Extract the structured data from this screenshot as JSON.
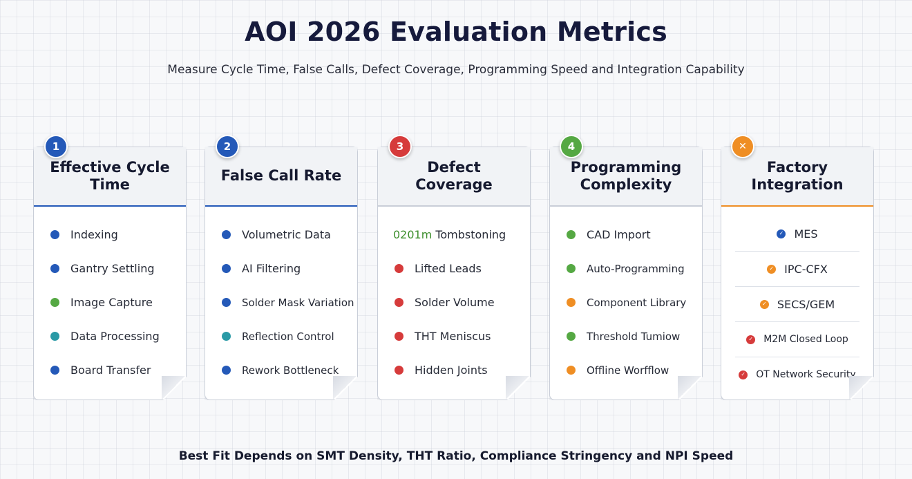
{
  "title": "AOI 2026 Evaluation Metrics",
  "subtitle": "Measure Cycle Time, False Calls, Defect Coverage, Programming Speed and Integration Capability",
  "footer": "Best Fit Depends on SMT Density, THT Ratio, Compliance Stringency and NPI Speed",
  "colors": {
    "blue": "#2459b8",
    "green": "#55a843",
    "red": "#d63b3b",
    "orange": "#ef8e24",
    "teal": "#2a9aa6"
  },
  "cards": [
    {
      "badge": "1",
      "title": "Effective Cycle Time",
      "items": [
        "Indexing",
        "Gantry Settling",
        "Image Capture",
        "Data Processing",
        "Board Transfer"
      ]
    },
    {
      "badge": "2",
      "title": "False Call Rate",
      "items": [
        "Volumetric Data",
        "AI Filtering",
        "Solder Mask Variation",
        "Reflection Control",
        "Rework Bottleneck"
      ]
    },
    {
      "badge": "3",
      "title": "Defect Coverage",
      "items_first_prefix": "0201m",
      "items": [
        "Tombstoning",
        "Lifted Leads",
        "Solder Volume",
        "THT Meniscus",
        "Hidden Joints"
      ]
    },
    {
      "badge": "4",
      "title": "Programming Complexity",
      "items": [
        "CAD Import",
        "Auto-Programming",
        "Component Library",
        "Threshold Tumiow",
        "Offline Worfflow"
      ]
    },
    {
      "badge": "✕",
      "title": "Factory Integration",
      "items": [
        "MES",
        "IPC-CFX",
        "SECS/GEM",
        "M2M Closed Loop",
        "OT Network Security"
      ]
    }
  ]
}
